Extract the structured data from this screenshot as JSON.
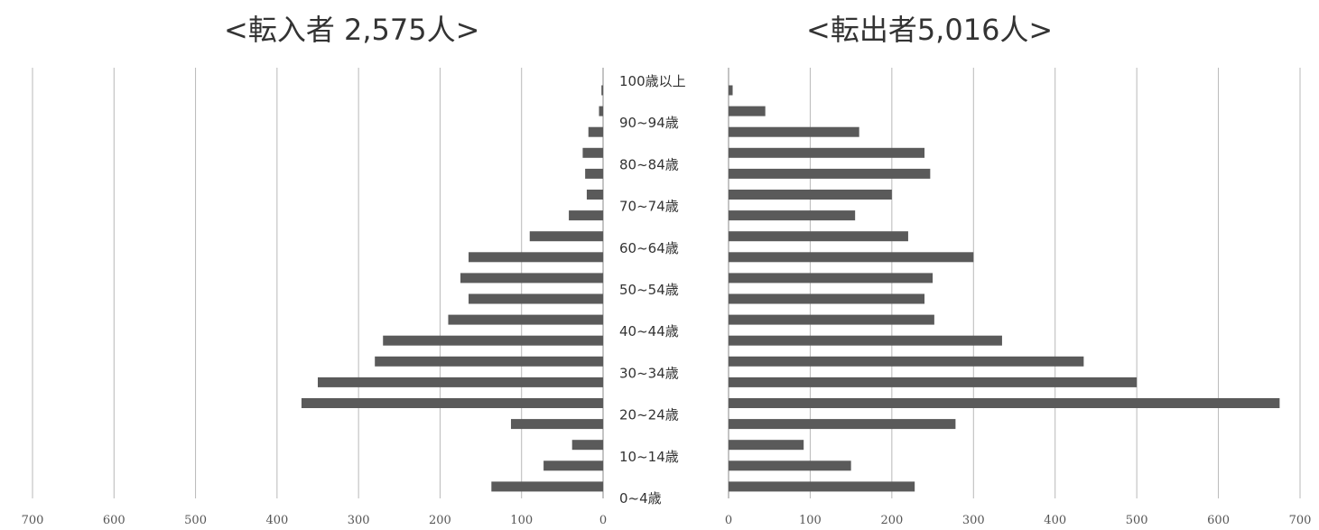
{
  "titles": {
    "left": "<転入者 2,575人>",
    "right": "<転出者5,016人>"
  },
  "colors": {
    "bar": "#5a5a5a",
    "grid": "#b8b8b8",
    "axis": "#888888"
  },
  "chart_data": [
    {
      "type": "bar",
      "orientation": "horizontal",
      "direction": "leftward",
      "title": "<転入者 2,575人>",
      "xlim": [
        0,
        700
      ],
      "x_ticks": [
        700,
        600,
        500,
        400,
        300,
        200,
        100,
        0
      ],
      "category_labels": [
        "100歳以上",
        "90~94歳",
        "80~84歳",
        "70~74歳",
        "60~64歳",
        "50~54歳",
        "40~44歳",
        "30~34歳",
        "20~24歳",
        "10~14歳",
        "0~4歳"
      ],
      "values": [
        2,
        5,
        18,
        25,
        22,
        20,
        42,
        90,
        165,
        175,
        165,
        190,
        270,
        280,
        350,
        370,
        113,
        38,
        73,
        137
      ]
    },
    {
      "type": "bar",
      "orientation": "horizontal",
      "direction": "rightward",
      "title": "<転出者5,016人>",
      "xlim": [
        0,
        700
      ],
      "x_ticks": [
        0,
        100,
        200,
        300,
        400,
        500,
        600,
        700
      ],
      "values": [
        5,
        45,
        160,
        240,
        247,
        200,
        155,
        220,
        300,
        250,
        240,
        252,
        335,
        435,
        500,
        675,
        278,
        92,
        150,
        228
      ]
    }
  ]
}
